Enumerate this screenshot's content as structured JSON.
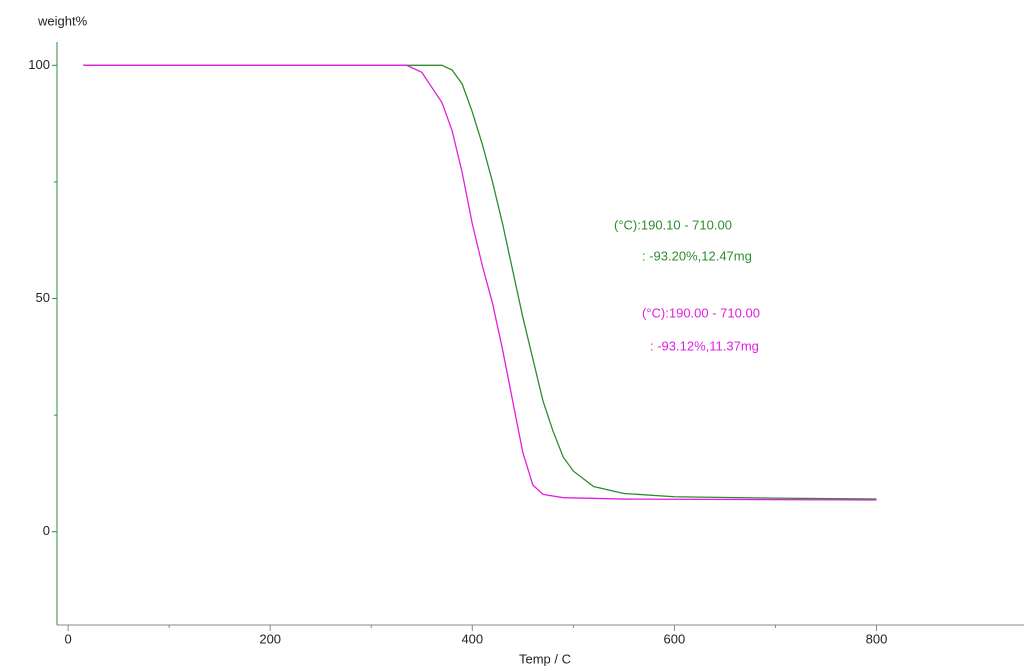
{
  "chart_data": {
    "type": "line",
    "ylabel": "weight%",
    "xlabel": "Temp / C",
    "xlim": [
      -11,
      946
    ],
    "ylim": [
      -20,
      105
    ],
    "xticks": [
      0,
      200,
      400,
      600,
      800
    ],
    "xticks_minor": [
      100,
      300,
      500,
      700
    ],
    "yticks": [
      0,
      50,
      100
    ],
    "yticks_minor": [
      25,
      75
    ],
    "series": [
      {
        "color": "#2e8b2e",
        "x": [
          15,
          370,
          380,
          390,
          400,
          410,
          420,
          430,
          440,
          450,
          460,
          470,
          480,
          490,
          500,
          520,
          550,
          600,
          700,
          800
        ],
        "values": [
          100,
          100,
          99,
          96,
          90,
          83,
          75,
          66,
          56,
          46,
          37,
          28,
          21.5,
          16,
          13,
          9.7,
          8.2,
          7.5,
          7.2,
          7.0
        ]
      },
      {
        "color": "#e020e0",
        "x": [
          15,
          335,
          350,
          370,
          380,
          390,
          400,
          410,
          420,
          430,
          440,
          450,
          460,
          470,
          490,
          550,
          800
        ],
        "values": [
          100,
          100,
          98.5,
          92,
          86,
          77,
          66,
          57,
          49,
          39,
          28,
          17,
          10,
          8,
          7.3,
          7,
          6.8
        ]
      }
    ],
    "annotations": [
      {
        "text": "(°C):190.10 - 710.00",
        "color": "#2e8b2e"
      },
      {
        "text": ": -93.20%,12.47mg",
        "color": "#2e8b2e"
      },
      {
        "text": "(°C):190.00 - 710.00",
        "color": "#e020e0"
      },
      {
        "text": ": -93.12%,11.37mg",
        "color": "#e020e0"
      }
    ]
  }
}
